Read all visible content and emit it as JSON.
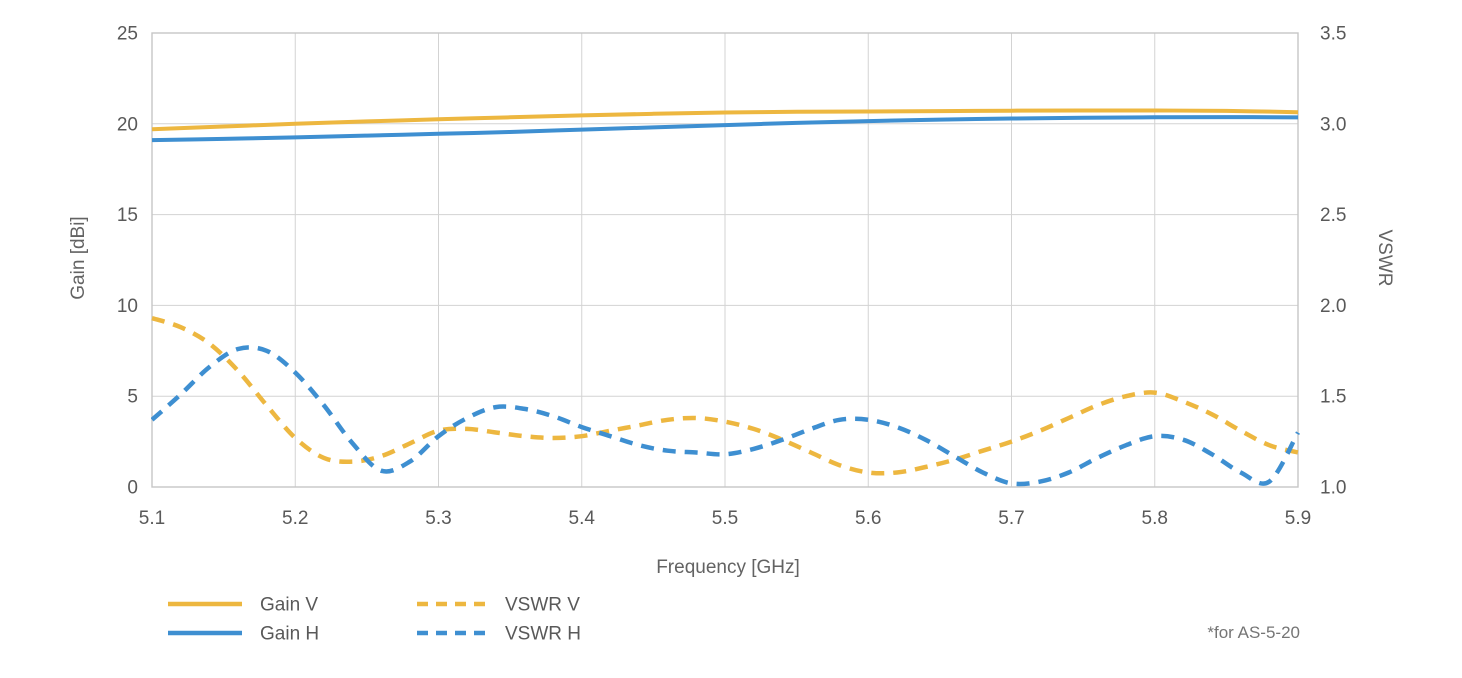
{
  "chart_data": {
    "type": "line",
    "title": "",
    "xlabel": "Frequency [GHz]",
    "ylabel_left": "Gain [dBi]",
    "ylabel_right": "VSWR",
    "footnote": "*for AS-5-20",
    "x_range": [
      5.1,
      5.9
    ],
    "x_tick_labels": [
      "5.1",
      "5.2",
      "5.3",
      "5.4",
      "5.5",
      "5.6",
      "5.7",
      "5.8",
      "5.9"
    ],
    "y_left_range": [
      0,
      25
    ],
    "y_left_tick_labels": [
      "25",
      "20",
      "15",
      "10",
      "5",
      "0"
    ],
    "y_right_range": [
      1.0,
      3.5
    ],
    "y_right_tick_labels": [
      "3.5",
      "3.0",
      "2.5",
      "2.0",
      "1.5",
      "1.0"
    ],
    "grid": true,
    "legend_position": "bottom-left",
    "colors": {
      "yellow": "#EDB740",
      "blue": "#3E8FD1",
      "grid": "#D3D3D3",
      "border": "#C6C6C6",
      "text": "#595959"
    },
    "series": [
      {
        "name": "Gain V",
        "axis": "left",
        "style": "solid",
        "color": "#EDB740",
        "x": [
          5.1,
          5.15,
          5.2,
          5.25,
          5.3,
          5.35,
          5.4,
          5.45,
          5.5,
          5.55,
          5.6,
          5.65,
          5.7,
          5.75,
          5.8,
          5.85,
          5.9
        ],
        "y": [
          19.7,
          19.85,
          20.0,
          20.13,
          20.25,
          20.36,
          20.46,
          20.55,
          20.62,
          20.66,
          20.68,
          20.7,
          20.72,
          20.73,
          20.73,
          20.71,
          20.64
        ]
      },
      {
        "name": "Gain H",
        "axis": "left",
        "style": "solid",
        "color": "#3E8FD1",
        "x": [
          5.1,
          5.15,
          5.2,
          5.25,
          5.3,
          5.35,
          5.4,
          5.45,
          5.5,
          5.55,
          5.6,
          5.65,
          5.7,
          5.75,
          5.8,
          5.85,
          5.9
        ],
        "y": [
          19.1,
          19.17,
          19.25,
          19.35,
          19.45,
          19.55,
          19.68,
          19.8,
          19.93,
          20.05,
          20.15,
          20.23,
          20.29,
          20.33,
          20.36,
          20.37,
          20.35
        ]
      },
      {
        "name": "VSWR V",
        "axis": "right",
        "style": "dashed",
        "color": "#EDB740",
        "x": [
          5.1,
          5.12,
          5.14,
          5.16,
          5.18,
          5.2,
          5.22,
          5.24,
          5.26,
          5.28,
          5.3,
          5.32,
          5.34,
          5.36,
          5.38,
          5.4,
          5.42,
          5.44,
          5.46,
          5.48,
          5.5,
          5.52,
          5.54,
          5.56,
          5.58,
          5.6,
          5.62,
          5.64,
          5.66,
          5.68,
          5.7,
          5.72,
          5.74,
          5.76,
          5.78,
          5.8,
          5.82,
          5.84,
          5.86,
          5.88,
          5.9
        ],
        "y": [
          1.93,
          1.88,
          1.79,
          1.64,
          1.45,
          1.27,
          1.16,
          1.14,
          1.17,
          1.24,
          1.31,
          1.32,
          1.3,
          1.28,
          1.27,
          1.28,
          1.31,
          1.34,
          1.37,
          1.38,
          1.36,
          1.32,
          1.26,
          1.19,
          1.12,
          1.08,
          1.08,
          1.11,
          1.15,
          1.2,
          1.25,
          1.31,
          1.38,
          1.45,
          1.5,
          1.52,
          1.47,
          1.4,
          1.31,
          1.23,
          1.19
        ]
      },
      {
        "name": "VSWR H",
        "axis": "right",
        "style": "dashed",
        "color": "#3E8FD1",
        "x": [
          5.1,
          5.12,
          5.14,
          5.16,
          5.18,
          5.2,
          5.22,
          5.24,
          5.26,
          5.28,
          5.3,
          5.32,
          5.34,
          5.36,
          5.38,
          5.4,
          5.42,
          5.44,
          5.46,
          5.48,
          5.5,
          5.52,
          5.54,
          5.56,
          5.58,
          5.6,
          5.62,
          5.64,
          5.66,
          5.68,
          5.7,
          5.72,
          5.74,
          5.76,
          5.78,
          5.8,
          5.82,
          5.84,
          5.86,
          5.88,
          5.9
        ],
        "y": [
          1.37,
          1.51,
          1.66,
          1.76,
          1.75,
          1.63,
          1.45,
          1.24,
          1.09,
          1.14,
          1.28,
          1.38,
          1.44,
          1.43,
          1.39,
          1.33,
          1.28,
          1.23,
          1.2,
          1.19,
          1.18,
          1.21,
          1.26,
          1.32,
          1.37,
          1.37,
          1.33,
          1.26,
          1.17,
          1.08,
          1.02,
          1.03,
          1.08,
          1.16,
          1.23,
          1.28,
          1.26,
          1.18,
          1.08,
          1.03,
          1.3
        ]
      }
    ]
  }
}
